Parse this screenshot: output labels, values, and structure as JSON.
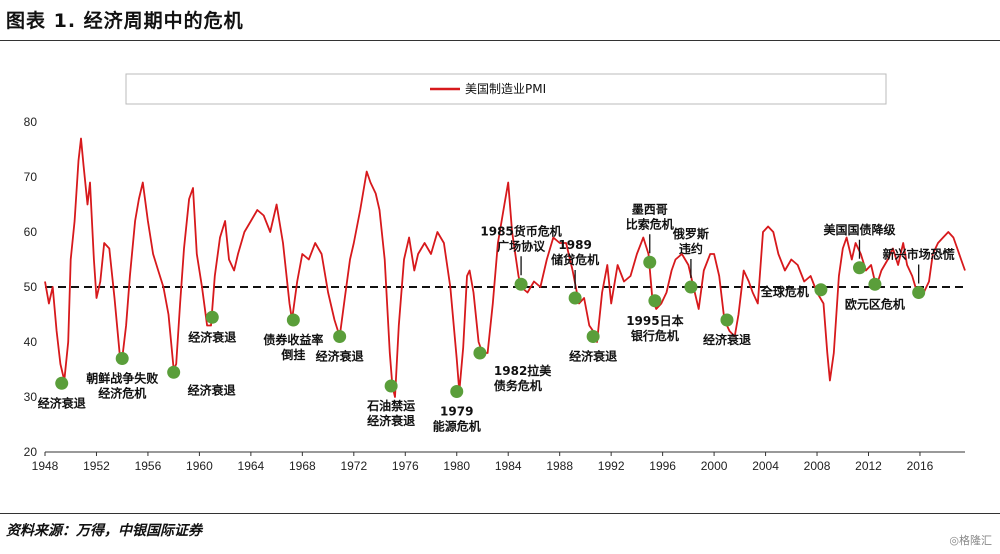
{
  "title": "图表 1. 经济周期中的危机",
  "source": "资料来源：万得，中银国际证券",
  "watermark": "◎格隆汇",
  "colors": {
    "line": "#d7191c",
    "dot": "#5a9e3a",
    "ref": "#111111"
  },
  "chart_data": {
    "type": "line",
    "title": "",
    "xlabel": "",
    "ylabel": "",
    "xlim": [
      1948,
      2019.5
    ],
    "ylim": [
      20,
      80
    ],
    "x_ticks": [
      1948,
      1952,
      1956,
      1960,
      1964,
      1968,
      1972,
      1976,
      1980,
      1984,
      1988,
      1992,
      1996,
      2000,
      2004,
      2008,
      2012,
      2016
    ],
    "y_ticks": [
      20,
      30,
      40,
      50,
      60,
      70,
      80
    ],
    "reference_line": 50,
    "legend": {
      "label": "美国制造业PMI",
      "placement": "top"
    },
    "series": [
      {
        "name": "美国制造业PMI",
        "points": [
          [
            1948.0,
            51
          ],
          [
            1948.3,
            47
          ],
          [
            1948.6,
            50
          ],
          [
            1948.9,
            42
          ],
          [
            1949.2,
            36
          ],
          [
            1949.5,
            33
          ],
          [
            1949.8,
            40
          ],
          [
            1950.0,
            55
          ],
          [
            1950.3,
            62
          ],
          [
            1950.6,
            73
          ],
          [
            1950.8,
            77
          ],
          [
            1951.0,
            72
          ],
          [
            1951.3,
            65
          ],
          [
            1951.5,
            69
          ],
          [
            1951.8,
            55
          ],
          [
            1952.0,
            48
          ],
          [
            1952.3,
            51
          ],
          [
            1952.6,
            58
          ],
          [
            1953.0,
            57
          ],
          [
            1953.4,
            48
          ],
          [
            1953.8,
            38
          ],
          [
            1954.0,
            37
          ],
          [
            1954.3,
            43
          ],
          [
            1954.6,
            52
          ],
          [
            1955.0,
            62
          ],
          [
            1955.3,
            66
          ],
          [
            1955.6,
            69
          ],
          [
            1956.0,
            62
          ],
          [
            1956.4,
            56
          ],
          [
            1956.8,
            53
          ],
          [
            1957.2,
            50
          ],
          [
            1957.6,
            45
          ],
          [
            1958.0,
            35
          ],
          [
            1958.2,
            36
          ],
          [
            1958.5,
            47
          ],
          [
            1958.8,
            57
          ],
          [
            1959.2,
            66
          ],
          [
            1959.5,
            68
          ],
          [
            1959.8,
            56
          ],
          [
            1960.2,
            50
          ],
          [
            1960.6,
            43
          ],
          [
            1960.9,
            43
          ],
          [
            1961.2,
            52
          ],
          [
            1961.6,
            59
          ],
          [
            1962.0,
            62
          ],
          [
            1962.3,
            55
          ],
          [
            1962.7,
            53
          ],
          [
            1963.0,
            56
          ],
          [
            1963.5,
            60
          ],
          [
            1964.0,
            62
          ],
          [
            1964.5,
            64
          ],
          [
            1965.0,
            63
          ],
          [
            1965.5,
            60
          ],
          [
            1966.0,
            65
          ],
          [
            1966.5,
            58
          ],
          [
            1967.0,
            47
          ],
          [
            1967.2,
            44
          ],
          [
            1967.6,
            51
          ],
          [
            1968.0,
            56
          ],
          [
            1968.5,
            55
          ],
          [
            1969.0,
            58
          ],
          [
            1969.5,
            56
          ],
          [
            1970.0,
            49
          ],
          [
            1970.5,
            44
          ],
          [
            1970.9,
            41
          ],
          [
            1971.3,
            48
          ],
          [
            1971.7,
            55
          ],
          [
            1972.0,
            58
          ],
          [
            1972.5,
            64
          ],
          [
            1973.0,
            71
          ],
          [
            1973.3,
            69
          ],
          [
            1973.7,
            67
          ],
          [
            1974.0,
            64
          ],
          [
            1974.4,
            55
          ],
          [
            1974.8,
            38
          ],
          [
            1975.0,
            32
          ],
          [
            1975.2,
            30
          ],
          [
            1975.5,
            43
          ],
          [
            1975.9,
            55
          ],
          [
            1976.3,
            59
          ],
          [
            1976.7,
            53
          ],
          [
            1977.0,
            56
          ],
          [
            1977.5,
            58
          ],
          [
            1978.0,
            56
          ],
          [
            1978.5,
            60
          ],
          [
            1979.0,
            58
          ],
          [
            1979.5,
            50
          ],
          [
            1980.0,
            37
          ],
          [
            1980.2,
            31
          ],
          [
            1980.5,
            39
          ],
          [
            1980.8,
            52
          ],
          [
            1981.0,
            53
          ],
          [
            1981.3,
            49
          ],
          [
            1981.7,
            40
          ],
          [
            1982.0,
            38
          ],
          [
            1982.4,
            38
          ],
          [
            1982.8,
            47
          ],
          [
            1983.2,
            58
          ],
          [
            1983.7,
            65
          ],
          [
            1984.0,
            69
          ],
          [
            1984.3,
            60
          ],
          [
            1984.8,
            52
          ],
          [
            1985.0,
            50
          ],
          [
            1985.5,
            49
          ],
          [
            1986.0,
            51
          ],
          [
            1986.5,
            50
          ],
          [
            1987.0,
            55
          ],
          [
            1987.5,
            59
          ],
          [
            1988.0,
            58
          ],
          [
            1988.5,
            58
          ],
          [
            1989.0,
            53
          ],
          [
            1989.5,
            47
          ],
          [
            1989.9,
            48
          ],
          [
            1990.3,
            43
          ],
          [
            1990.6,
            42
          ],
          [
            1990.9,
            40
          ],
          [
            1991.3,
            49
          ],
          [
            1991.7,
            54
          ],
          [
            1992.0,
            47
          ],
          [
            1992.5,
            54
          ],
          [
            1993.0,
            51
          ],
          [
            1993.5,
            52
          ],
          [
            1994.0,
            56
          ],
          [
            1994.5,
            59
          ],
          [
            1994.9,
            56
          ],
          [
            1995.2,
            48
          ],
          [
            1995.5,
            46
          ],
          [
            1995.9,
            47
          ],
          [
            1996.3,
            49
          ],
          [
            1996.7,
            53
          ],
          [
            1997.0,
            55
          ],
          [
            1997.5,
            56
          ],
          [
            1998.0,
            54
          ],
          [
            1998.4,
            50
          ],
          [
            1998.8,
            46
          ],
          [
            1999.2,
            53
          ],
          [
            1999.7,
            56
          ],
          [
            2000.0,
            56
          ],
          [
            2000.4,
            52
          ],
          [
            2000.8,
            44
          ],
          [
            2001.2,
            42
          ],
          [
            2001.6,
            41
          ],
          [
            2001.9,
            45
          ],
          [
            2002.3,
            53
          ],
          [
            2002.7,
            51
          ],
          [
            2003.0,
            49
          ],
          [
            2003.4,
            47
          ],
          [
            2003.8,
            60
          ],
          [
            2004.2,
            61
          ],
          [
            2004.6,
            60
          ],
          [
            2005.0,
            56
          ],
          [
            2005.5,
            53
          ],
          [
            2006.0,
            55
          ],
          [
            2006.5,
            54
          ],
          [
            2007.0,
            51
          ],
          [
            2007.5,
            52
          ],
          [
            2008.0,
            49
          ],
          [
            2008.5,
            47
          ],
          [
            2008.8,
            38
          ],
          [
            2009.0,
            33
          ],
          [
            2009.3,
            38
          ],
          [
            2009.7,
            52
          ],
          [
            2010.0,
            57
          ],
          [
            2010.3,
            59
          ],
          [
            2010.7,
            55
          ],
          [
            2011.0,
            58
          ],
          [
            2011.4,
            56
          ],
          [
            2011.8,
            53
          ],
          [
            2012.2,
            54
          ],
          [
            2012.6,
            50
          ],
          [
            2013.0,
            53
          ],
          [
            2013.5,
            55
          ],
          [
            2013.9,
            57
          ],
          [
            2014.3,
            54
          ],
          [
            2014.7,
            58
          ],
          [
            2015.0,
            54
          ],
          [
            2015.4,
            52
          ],
          [
            2015.9,
            48
          ],
          [
            2016.3,
            49
          ],
          [
            2016.7,
            51
          ],
          [
            2017.0,
            56
          ],
          [
            2017.4,
            58
          ],
          [
            2017.8,
            59
          ],
          [
            2018.2,
            60
          ],
          [
            2018.6,
            59
          ],
          [
            2018.9,
            57
          ],
          [
            2019.2,
            55
          ],
          [
            2019.5,
            53
          ]
        ]
      }
    ],
    "events": [
      {
        "x": 1949.3,
        "y": 32.5,
        "label": [
          "经济衰退"
        ],
        "label_pos": "below"
      },
      {
        "x": 1954.0,
        "y": 37.0,
        "label": [
          "朝鲜战争失败",
          "经济危机"
        ],
        "label_pos": "below"
      },
      {
        "x": 1958.0,
        "y": 34.5,
        "label": [
          "经济衰退"
        ],
        "label_pos": "below-right"
      },
      {
        "x": 1961.0,
        "y": 44.5,
        "label": [
          "经济衰退"
        ],
        "label_pos": "below"
      },
      {
        "x": 1967.3,
        "y": 44.0,
        "label": [
          "债券收益率",
          "倒挂"
        ],
        "label_pos": "below"
      },
      {
        "x": 1970.9,
        "y": 41.0,
        "label": [
          "经济衰退"
        ],
        "label_pos": "below"
      },
      {
        "x": 1974.9,
        "y": 32.0,
        "label": [
          "石油禁运",
          "经济衰退"
        ],
        "label_pos": "below"
      },
      {
        "x": 1980.0,
        "y": 31.0,
        "label": [
          "1979",
          "能源危机"
        ],
        "label_pos": "below"
      },
      {
        "x": 1981.8,
        "y": 38.0,
        "label": [
          "1982拉美",
          "债务危机"
        ],
        "label_pos": "below-right"
      },
      {
        "x": 1985.0,
        "y": 50.5,
        "label": [
          "1985货币危机",
          "广场协议"
        ],
        "label_pos": "above"
      },
      {
        "x": 1989.2,
        "y": 48.0,
        "label": [
          "1989",
          "储贷危机"
        ],
        "label_pos": "above"
      },
      {
        "x": 1990.6,
        "y": 41.0,
        "label": [
          "经济衰退"
        ],
        "label_pos": "below"
      },
      {
        "x": 1995.0,
        "y": 54.5,
        "label": [
          "墨西哥",
          "比索危机"
        ],
        "label_pos": "above"
      },
      {
        "x": 1995.4,
        "y": 47.5,
        "label": [
          "1995日本",
          "银行危机"
        ],
        "label_pos": "below"
      },
      {
        "x": 1998.2,
        "y": 50.0,
        "label": [
          "俄罗斯",
          "违约"
        ],
        "label_pos": "above"
      },
      {
        "x": 2001.0,
        "y": 44.0,
        "label": [
          "经济衰退"
        ],
        "label_pos": "below"
      },
      {
        "x": 2008.3,
        "y": 49.5,
        "label": [
          "全球危机"
        ],
        "label_pos": "below-left"
      },
      {
        "x": 2011.3,
        "y": 53.5,
        "label": [
          "美国国债降级"
        ],
        "label_pos": "above"
      },
      {
        "x": 2012.5,
        "y": 50.5,
        "label": [
          "欧元区危机"
        ],
        "label_pos": "below"
      },
      {
        "x": 2015.9,
        "y": 49.0,
        "label": [
          "新兴市场恐慌"
        ],
        "label_pos": "above"
      }
    ]
  }
}
